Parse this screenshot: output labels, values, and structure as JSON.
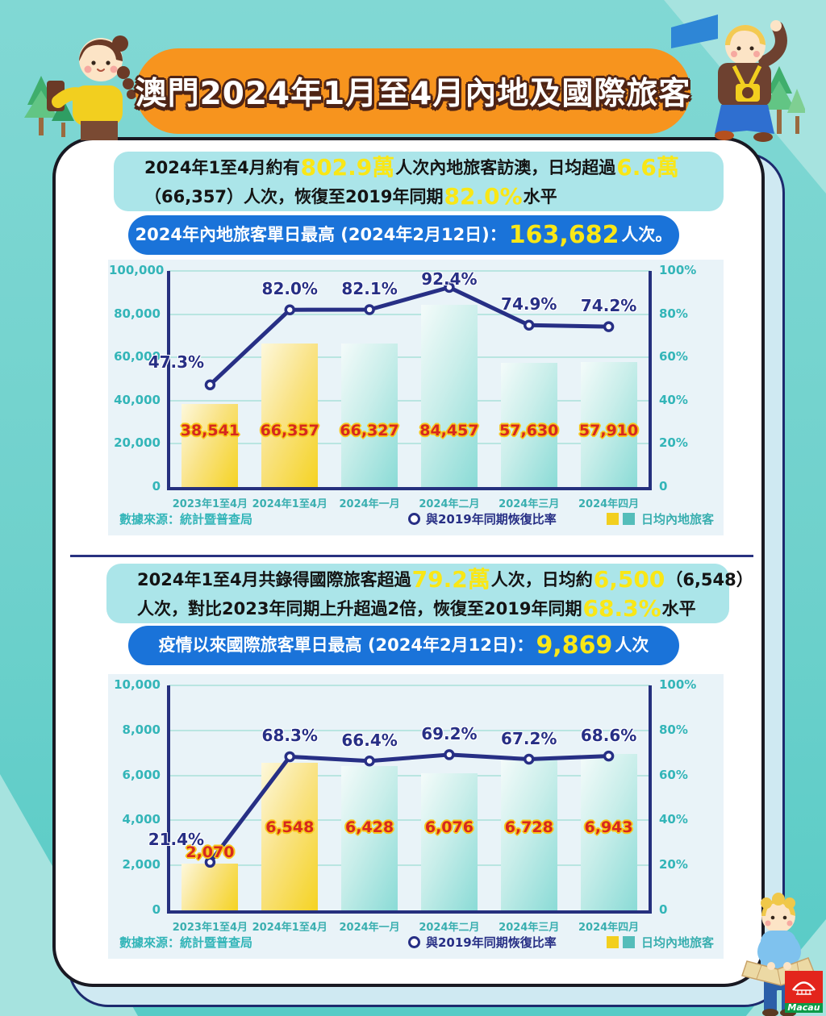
{
  "title": "澳門2024年1月至4月內地及國際旅客",
  "logo": {
    "text": "Macau"
  },
  "sections": [
    {
      "summary_lines": [
        [
          {
            "t": "2024年1至4月約有"
          },
          {
            "t": "802.9萬",
            "hl": 1
          },
          {
            "t": "人次內地旅客訪澳，日均超過"
          },
          {
            "t": "6.6萬",
            "hl": 1
          }
        ],
        [
          {
            "t": "（66,357）人次，恢復至2019年同期"
          },
          {
            "t": "82.0%",
            "hl": 1
          },
          {
            "t": "水平"
          }
        ]
      ],
      "banner_parts": [
        {
          "t": "2024年內地旅客單日最高 (2024年2月12日)："
        },
        {
          "t": "163,682",
          "hl": 1
        },
        {
          "t": "人次。"
        }
      ]
    },
    {
      "summary_lines": [
        [
          {
            "t": "2024年1至4月共錄得國際旅客超過"
          },
          {
            "t": "79.2萬",
            "hl": 1
          },
          {
            "t": "人次，日均約"
          },
          {
            "t": "6,500",
            "hl": 1
          },
          {
            "t": "（6,548）"
          }
        ],
        [
          {
            "t": "人次，對比2023年同期上升超過2倍，恢復至2019年同期"
          },
          {
            "t": "68.3%",
            "hl": 1
          },
          {
            "t": "水平"
          }
        ]
      ],
      "banner_parts": [
        {
          "t": "疫情以來國際旅客單日最高 (2024年2月12日)："
        },
        {
          "t": "9,869",
          "hl": 1
        },
        {
          "t": "人次"
        }
      ]
    }
  ],
  "chart_data": [
    {
      "type": "bar+line",
      "categories": [
        "2023年1至4月",
        "2024年1至4月",
        "2024年一月",
        "2024年二月",
        "2024年三月",
        "2024年四月"
      ],
      "bar_values": [
        38541,
        66357,
        66327,
        84457,
        57630,
        57910
      ],
      "bar_labels": [
        "38,541",
        "66,357",
        "66,327",
        "84,457",
        "57,630",
        "57,910"
      ],
      "bar_colors": [
        "yellow",
        "yellow",
        "teal",
        "teal",
        "teal",
        "teal"
      ],
      "line_values": [
        47.3,
        82.0,
        82.1,
        92.4,
        74.9,
        74.2
      ],
      "line_labels": [
        "47.3%",
        "82.0%",
        "82.1%",
        "92.4%",
        "74.9%",
        "74.2%"
      ],
      "y_left": {
        "min": 0,
        "max": 100000,
        "ticks": [
          "100,000",
          "80,000",
          "60,000",
          "40,000",
          "20,000",
          "0"
        ]
      },
      "y_right": {
        "min": 0,
        "max": 100,
        "ticks": [
          "100%",
          "80%",
          "60%",
          "40%",
          "20%",
          "0"
        ]
      },
      "label_level": 0.26,
      "legend_line": "與2019年同期恢復比率",
      "legend_bar": "日均內地旅客",
      "source": "數據來源：統計暨普查局"
    },
    {
      "type": "bar+line",
      "categories": [
        "2023年1至4月",
        "2024年1至4月",
        "2024年一月",
        "2024年二月",
        "2024年三月",
        "2024年四月"
      ],
      "bar_values": [
        2070,
        6548,
        6428,
        6076,
        6728,
        6943
      ],
      "bar_labels": [
        "2,070",
        "6,548",
        "6,428",
        "6,076",
        "6,728",
        "6,943"
      ],
      "bar_colors": [
        "yellow",
        "yellow",
        "teal",
        "teal",
        "teal",
        "teal"
      ],
      "line_values": [
        21.4,
        68.3,
        66.4,
        69.2,
        67.2,
        68.6
      ],
      "line_labels": [
        "21.4%",
        "68.3%",
        "66.4%",
        "69.2%",
        "67.2%",
        "68.6%"
      ],
      "y_left": {
        "min": 0,
        "max": 10000,
        "ticks": [
          "10,000",
          "8,000",
          "6,000",
          "4,000",
          "2,000",
          "0"
        ]
      },
      "y_right": {
        "min": 0,
        "max": 100,
        "ticks": [
          "100%",
          "80%",
          "60%",
          "40%",
          "20%",
          "0"
        ]
      },
      "label_level": 0.37,
      "legend_line": "與2019年同期恢復比率",
      "legend_bar": "日均內地旅客",
      "source": "數據來源：統計暨普查局"
    }
  ]
}
